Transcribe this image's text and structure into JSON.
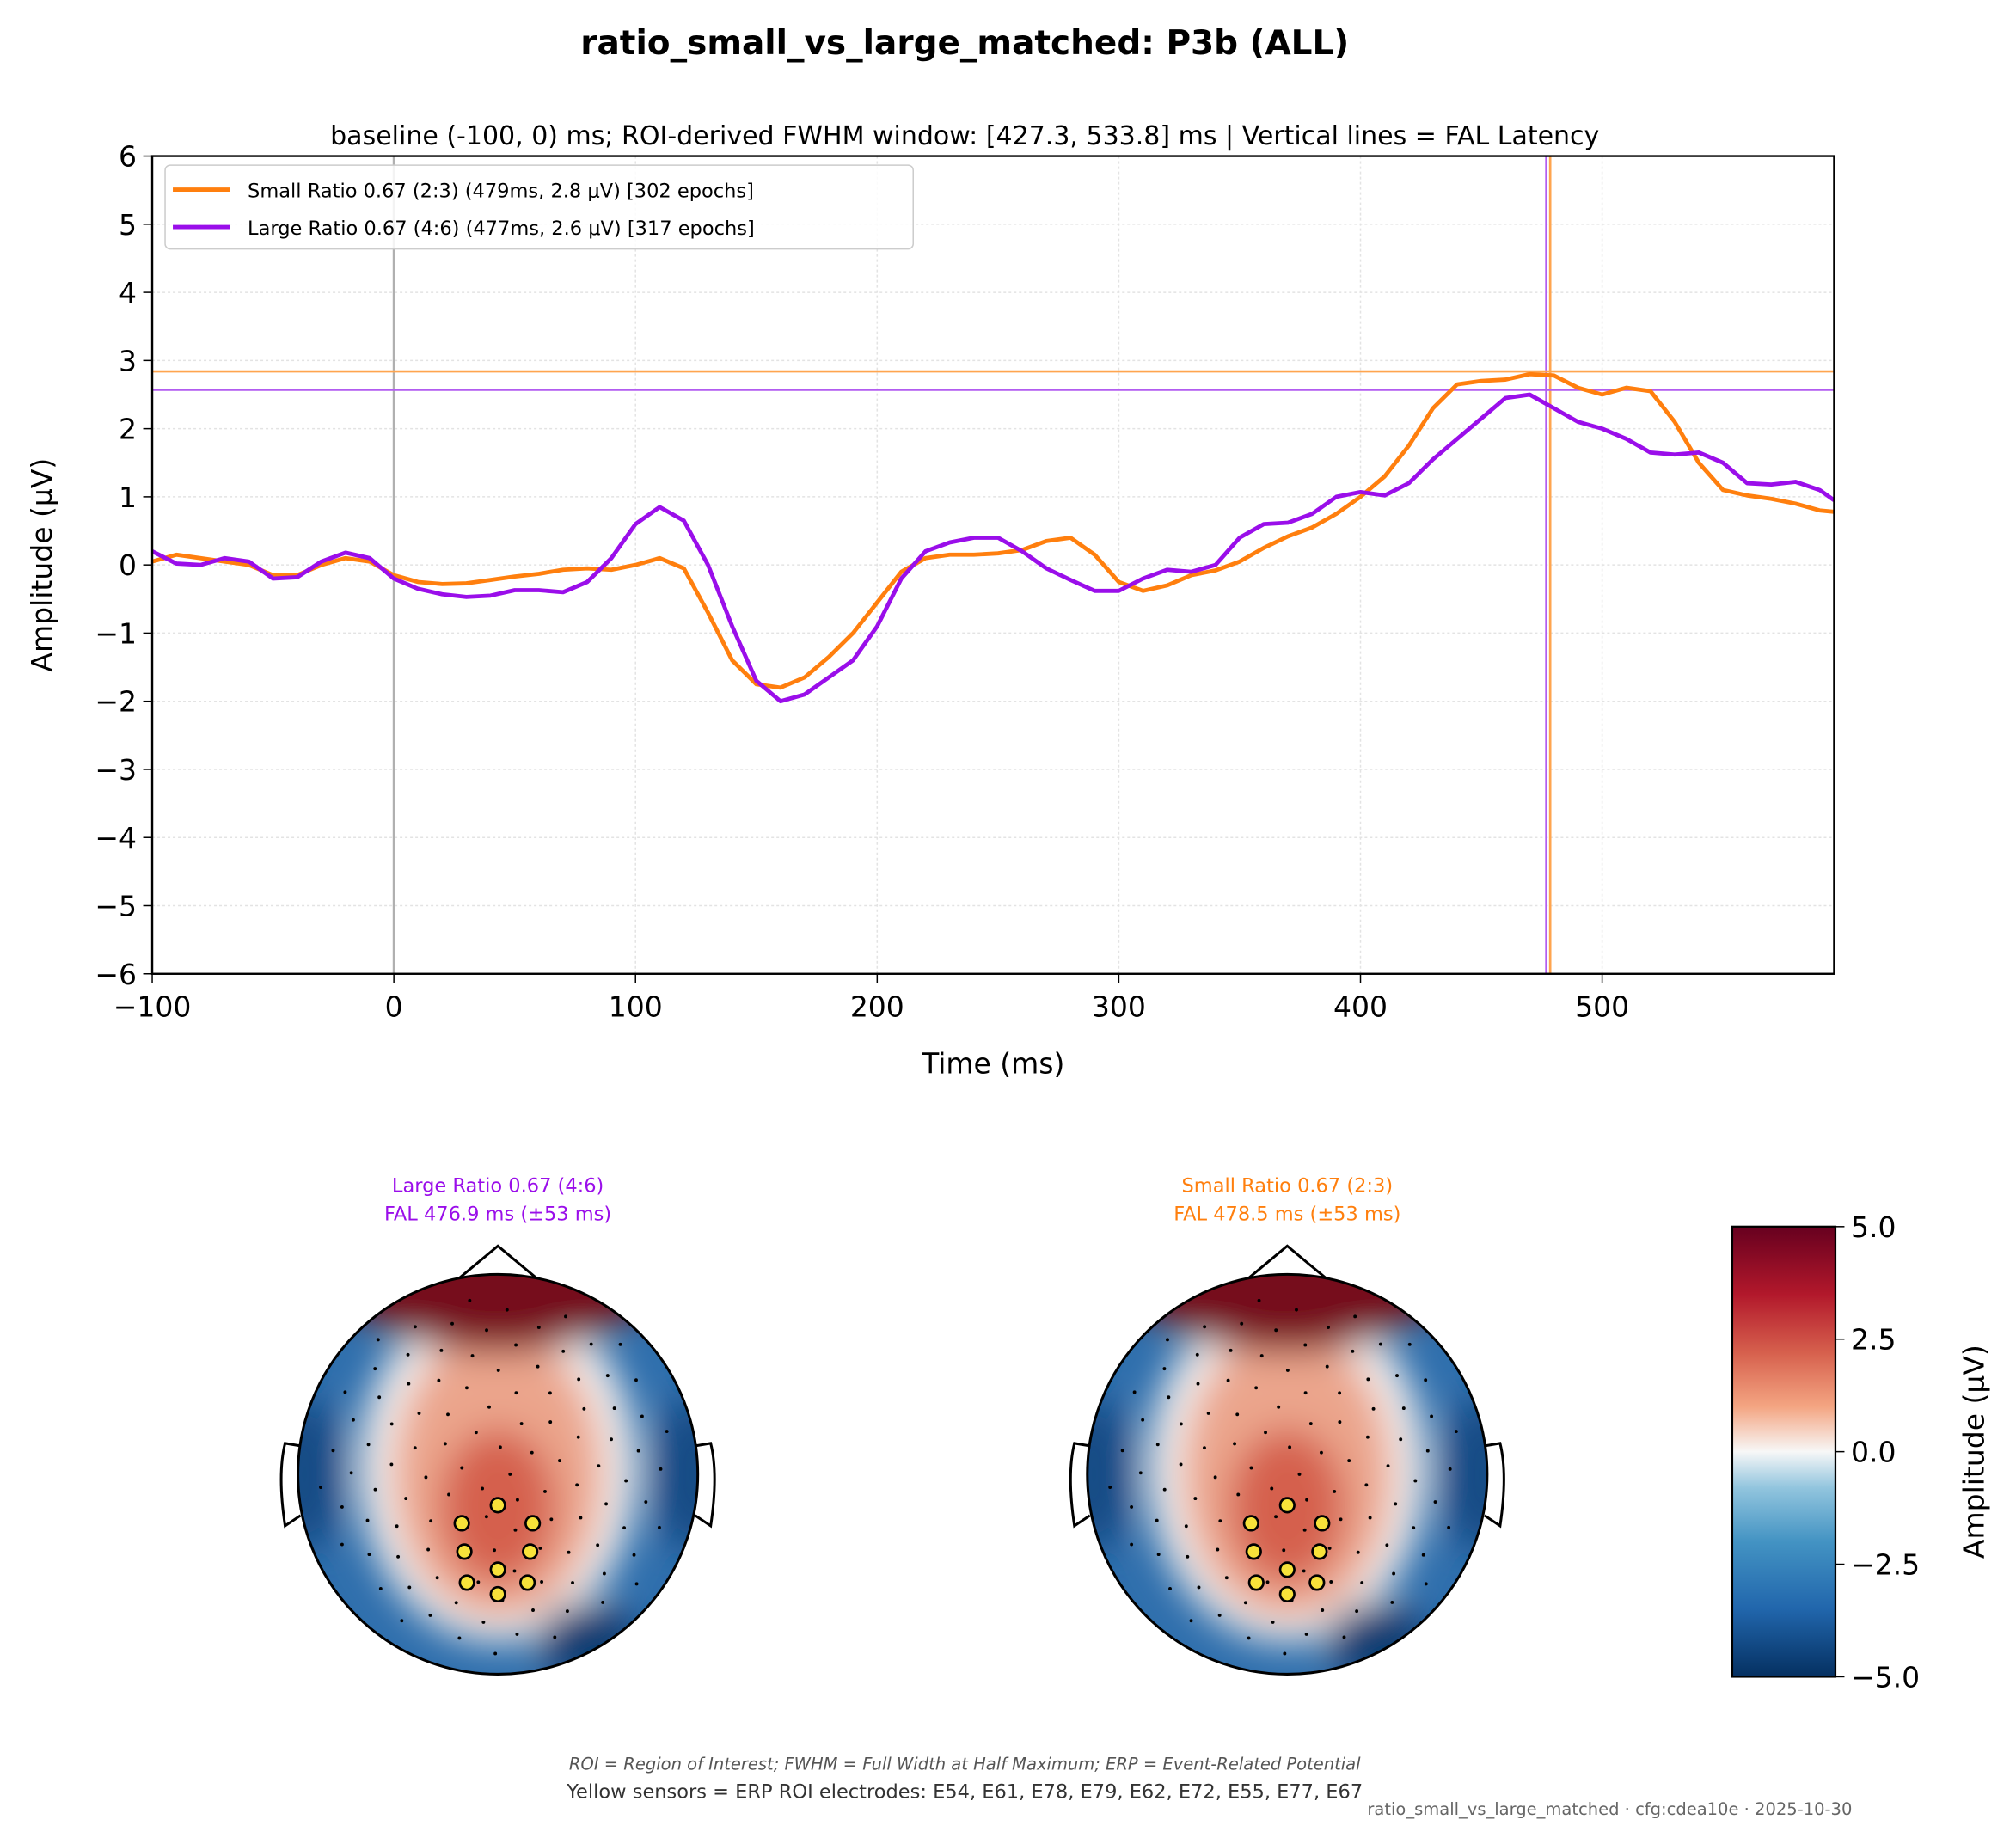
{
  "chart_data": [
    {
      "type": "line",
      "title": "ratio_small_vs_large_matched: P3b (ALL)",
      "subtitle": "baseline (-100, 0) ms; ROI-derived FWHM window: [427.3, 533.8] ms | Vertical lines = FAL Latency",
      "xlabel": "Time (ms)",
      "ylabel": "Amplitude (μV)",
      "x": [
        -100,
        -90,
        -80,
        -70,
        -60,
        -50,
        -40,
        -30,
        -20,
        -10,
        0,
        10,
        20,
        30,
        40,
        50,
        60,
        70,
        80,
        90,
        100,
        110,
        120,
        130,
        140,
        150,
        160,
        170,
        180,
        190,
        200,
        210,
        220,
        230,
        240,
        250,
        260,
        270,
        280,
        290,
        300,
        310,
        320,
        330,
        340,
        350,
        360,
        370,
        380,
        390,
        400,
        410,
        420,
        430,
        440,
        450,
        460,
        470,
        480,
        490,
        500,
        510,
        520,
        530,
        540,
        550,
        560,
        570,
        580,
        590,
        596
      ],
      "series": [
        {
          "name": "Small Ratio 0.67 (2:3) (479ms, 2.8 μV) [302 epochs]",
          "color": "#ff7f0e",
          "values": [
            0.05,
            0.15,
            0.1,
            0.05,
            0.0,
            -0.15,
            -0.15,
            0.0,
            0.1,
            0.05,
            -0.15,
            -0.25,
            -0.28,
            -0.27,
            -0.22,
            -0.17,
            -0.13,
            -0.07,
            -0.05,
            -0.07,
            0.0,
            0.1,
            -0.05,
            -0.7,
            -1.4,
            -1.75,
            -1.8,
            -1.65,
            -1.35,
            -1.0,
            -0.55,
            -0.1,
            0.1,
            0.15,
            0.15,
            0.17,
            0.22,
            0.35,
            0.4,
            0.15,
            -0.25,
            -0.38,
            -0.3,
            -0.15,
            -0.08,
            0.05,
            0.25,
            0.42,
            0.55,
            0.75,
            1.0,
            1.3,
            1.75,
            2.3,
            2.65,
            2.7,
            2.72,
            2.8,
            2.78,
            2.6,
            2.5,
            2.6,
            2.55,
            2.1,
            1.5,
            1.1,
            1.02,
            0.97,
            0.9,
            0.8,
            0.78
          ]
        },
        {
          "name": "Large Ratio 0.67 (4:6) (477ms, 2.6 μV) [317 epochs]",
          "color": "#9a0eea",
          "values": [
            0.2,
            0.02,
            0.0,
            0.1,
            0.05,
            -0.2,
            -0.18,
            0.05,
            0.18,
            0.1,
            -0.2,
            -0.35,
            -0.43,
            -0.47,
            -0.45,
            -0.37,
            -0.37,
            -0.4,
            -0.25,
            0.1,
            0.6,
            0.85,
            0.65,
            0.0,
            -0.9,
            -1.7,
            -2.0,
            -1.9,
            -1.65,
            -1.4,
            -0.9,
            -0.2,
            0.2,
            0.33,
            0.4,
            0.4,
            0.2,
            -0.05,
            -0.22,
            -0.38,
            -0.38,
            -0.2,
            -0.07,
            -0.1,
            0.0,
            0.4,
            0.6,
            0.62,
            0.75,
            1.0,
            1.07,
            1.02,
            1.2,
            1.55,
            1.85,
            2.15,
            2.45,
            2.5,
            2.3,
            2.1,
            2.0,
            1.85,
            1.65,
            1.62,
            1.65,
            1.5,
            1.2,
            1.18,
            1.22,
            1.1,
            0.95
          ]
        }
      ],
      "hlines": [
        {
          "value": 2.84,
          "color": "#ffa54f"
        },
        {
          "value": 2.57,
          "color": "#b25cf0"
        }
      ],
      "vlines": [
        {
          "value": 0,
          "color": "#b0b0b0"
        },
        {
          "value": 478.5,
          "color": "#ffa54f"
        },
        {
          "value": 476.9,
          "color": "#b25cf0"
        }
      ],
      "xlim": [
        -100,
        596
      ],
      "xticks": [
        {
          "value": -100,
          "label": "−100"
        },
        0,
        100,
        200,
        300,
        400,
        500
      ],
      "ylim": [
        -6,
        6
      ],
      "yticks": [
        {
          "value": -6,
          "label": "−6"
        },
        {
          "value": -5,
          "label": "−5"
        },
        {
          "value": -4,
          "label": "−4"
        },
        {
          "value": -3,
          "label": "−3"
        },
        {
          "value": -2,
          "label": "−2"
        },
        {
          "value": -1,
          "label": "−1"
        },
        0,
        1,
        2,
        3,
        4,
        5,
        6
      ],
      "grid": true,
      "legend": "upper-left"
    },
    {
      "type": "topomap",
      "title": [
        "Large Ratio 0.67 (4:6)",
        "FAL 476.9 ms (±53 ms)"
      ],
      "color": "#9a0eea"
    },
    {
      "type": "topomap",
      "title": [
        "Small Ratio 0.67 (2:3)",
        "FAL 478.5 ms (±53 ms)"
      ],
      "color": "#ff7f0e"
    },
    {
      "type": "colorbar",
      "ylabel": "Amplitude (μV)",
      "ylim": [
        -5,
        5
      ],
      "yticks": [
        {
          "value": -5,
          "label": "−5.0"
        },
        {
          "value": -2.5,
          "label": "−2.5"
        },
        {
          "value": 0,
          "label": "0.0"
        },
        {
          "value": 2.5,
          "label": "2.5"
        },
        {
          "value": 5,
          "label": "5.0"
        }
      ]
    }
  ],
  "footer": {
    "note": "ROI = Region of Interest; FWHM = Full Width at Half Maximum; ERP = Event-Related Potential",
    "sensors": "Yellow sensors = ERP ROI electrodes: E54, E61, E78, E79, E62, E72, E55, E77, E67",
    "stamp": "ratio_small_vs_large_matched · cfg:cdea10e · 2025-10-30"
  }
}
